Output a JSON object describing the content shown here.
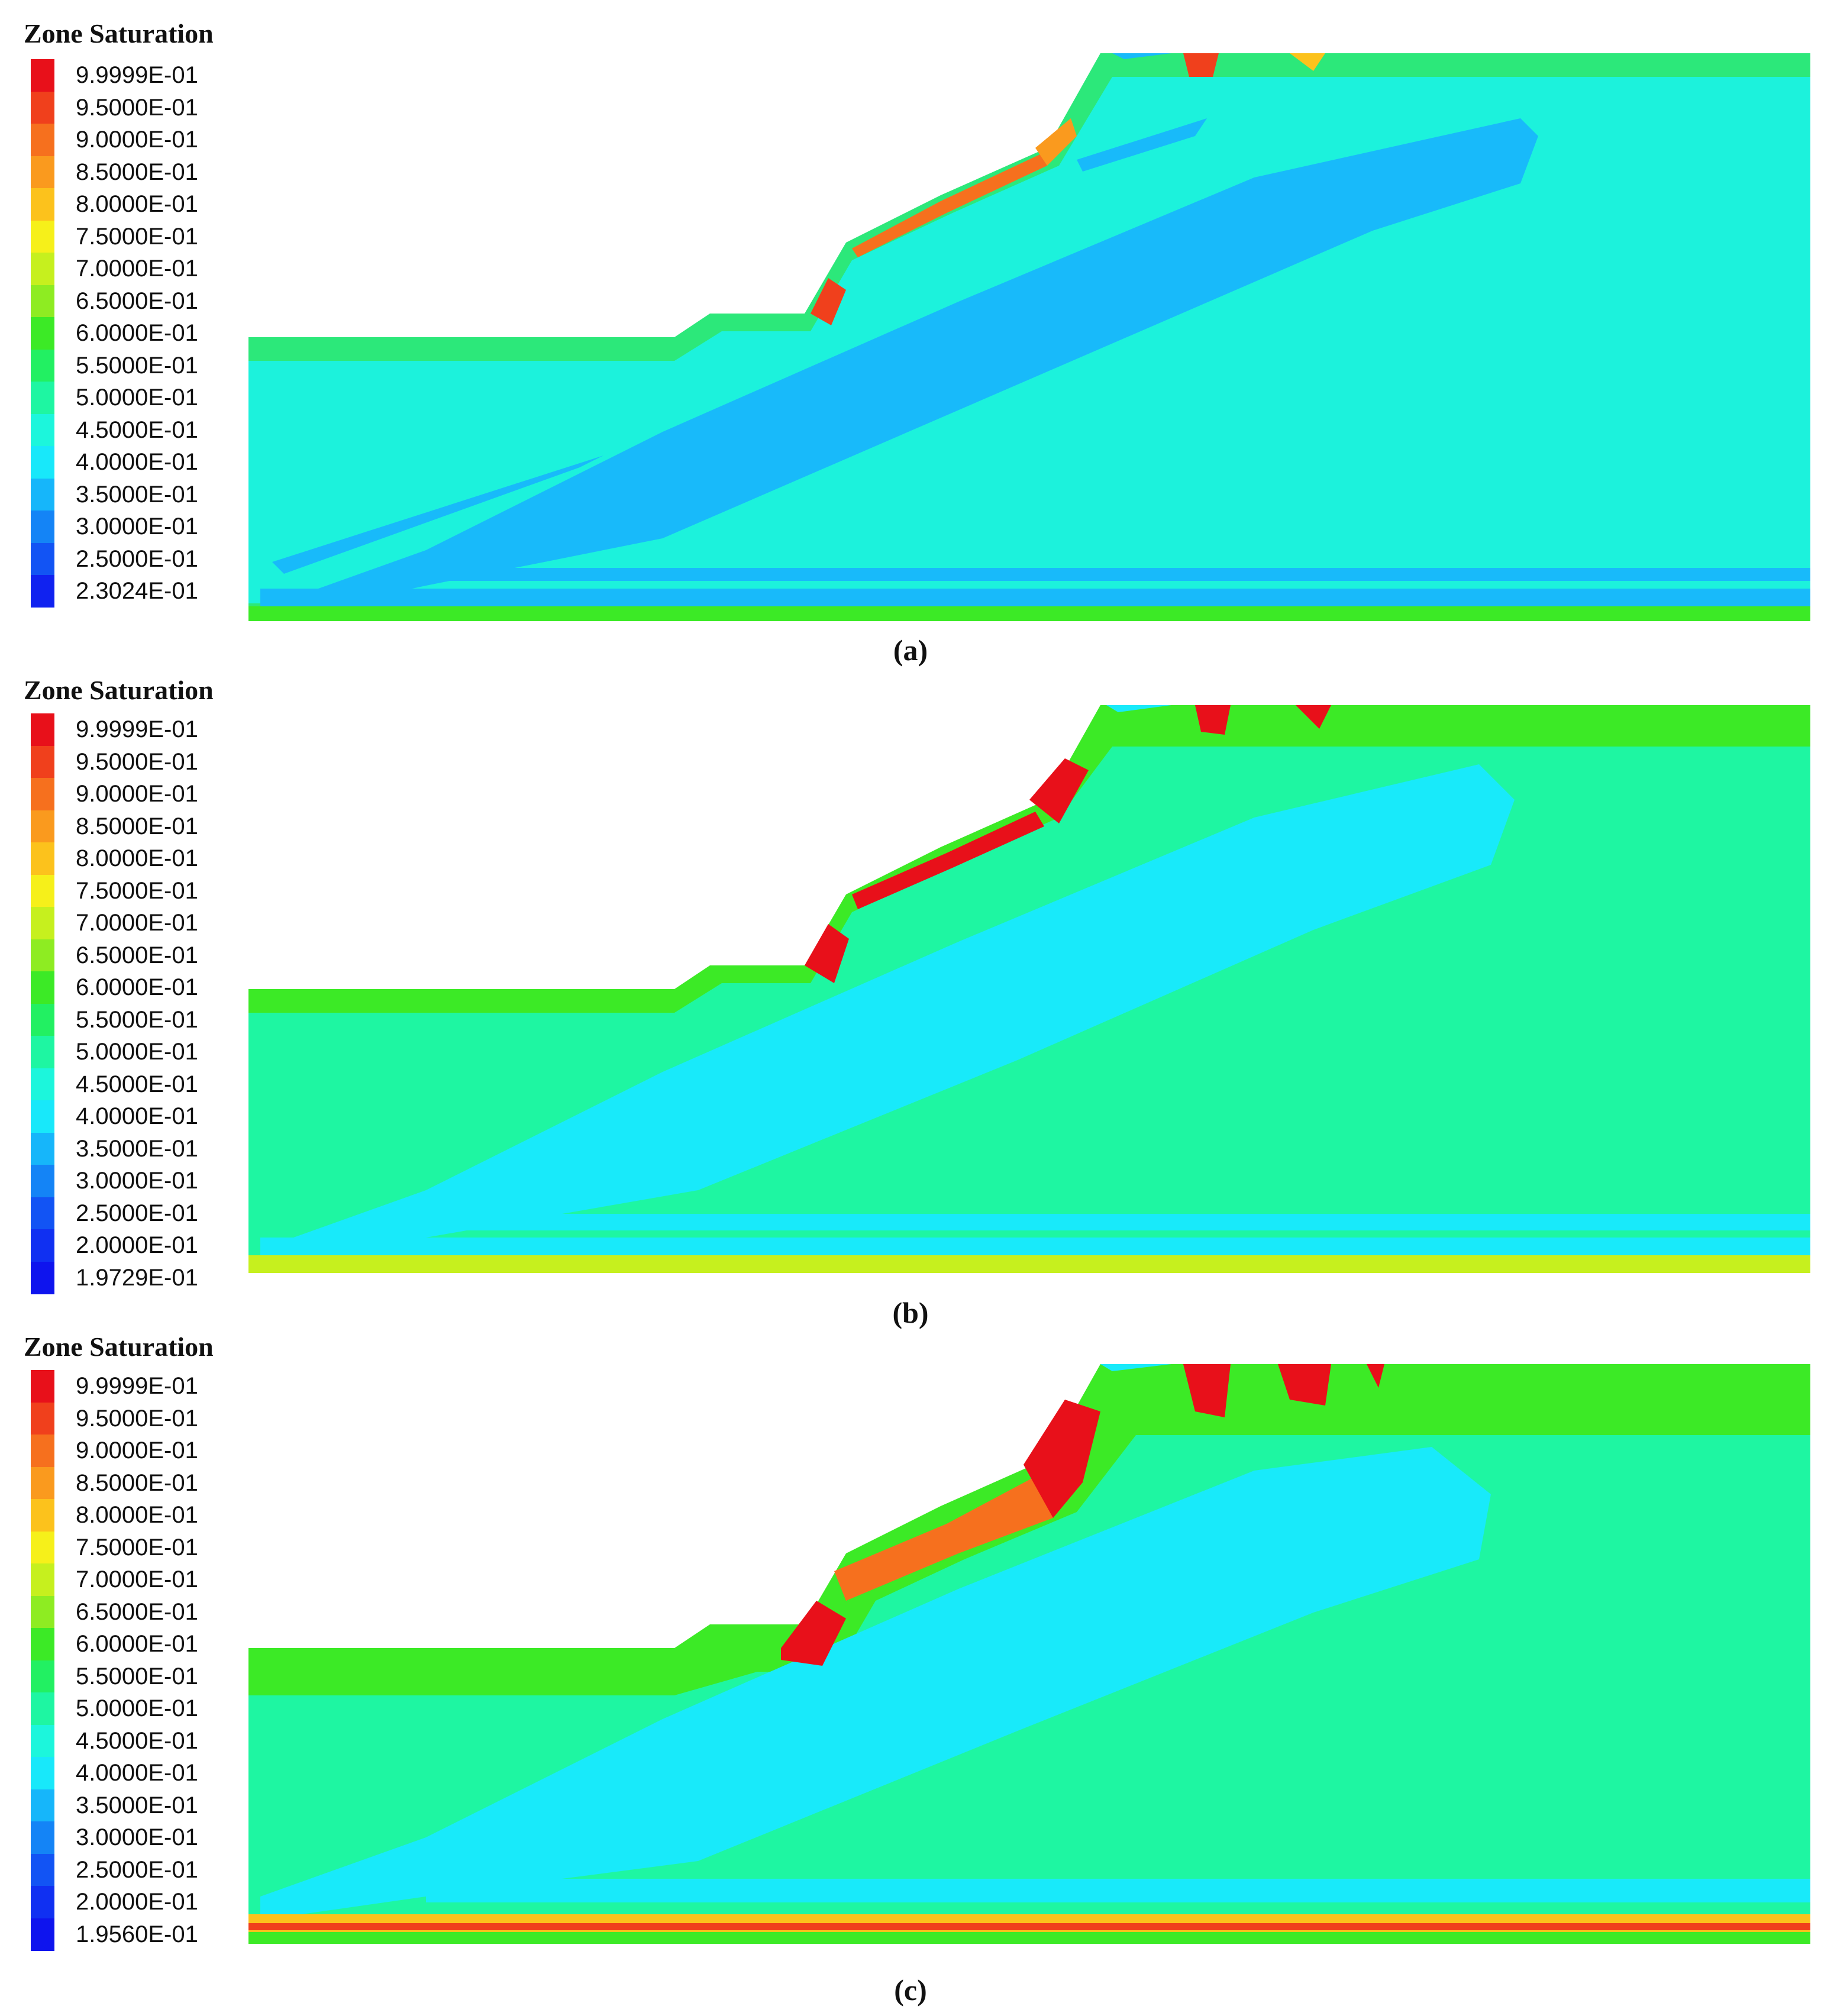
{
  "panels": [
    {
      "id": "a",
      "legend_title": "Zone Saturation",
      "caption": "(a)",
      "legend": [
        {
          "label": "9.9999E-01",
          "color": "#e8101a"
        },
        {
          "label": "9.5000E-01",
          "color": "#f0401c"
        },
        {
          "label": "9.0000E-01",
          "color": "#f6701e"
        },
        {
          "label": "8.5000E-01",
          "color": "#fa9a1e"
        },
        {
          "label": "8.0000E-01",
          "color": "#fcc21c"
        },
        {
          "label": "7.5000E-01",
          "color": "#f6f01a"
        },
        {
          "label": "7.0000E-01",
          "color": "#c6f01e"
        },
        {
          "label": "6.5000E-01",
          "color": "#8eec22"
        },
        {
          "label": "6.0000E-01",
          "color": "#3cea26"
        },
        {
          "label": "5.5000E-01",
          "color": "#22f062"
        },
        {
          "label": "5.0000E-01",
          "color": "#1ef6a2"
        },
        {
          "label": "4.5000E-01",
          "color": "#1cf6dc"
        },
        {
          "label": "4.0000E-01",
          "color": "#18e8fa"
        },
        {
          "label": "3.5000E-01",
          "color": "#16b6fa"
        },
        {
          "label": "3.0000E-01",
          "color": "#1484f6"
        },
        {
          "label": "2.5000E-01",
          "color": "#1254f4"
        },
        {
          "label": "2.3024E-01",
          "color": "#1022f0"
        }
      ]
    },
    {
      "id": "b",
      "legend_title": "Zone Saturation",
      "caption": "(b)",
      "legend": [
        {
          "label": "9.9999E-01",
          "color": "#e8101a"
        },
        {
          "label": "9.5000E-01",
          "color": "#f0401c"
        },
        {
          "label": "9.0000E-01",
          "color": "#f6701e"
        },
        {
          "label": "8.5000E-01",
          "color": "#fa9a1e"
        },
        {
          "label": "8.0000E-01",
          "color": "#fcc21c"
        },
        {
          "label": "7.5000E-01",
          "color": "#f6f01a"
        },
        {
          "label": "7.0000E-01",
          "color": "#c6f01e"
        },
        {
          "label": "6.5000E-01",
          "color": "#8eec22"
        },
        {
          "label": "6.0000E-01",
          "color": "#3cea26"
        },
        {
          "label": "5.5000E-01",
          "color": "#22f062"
        },
        {
          "label": "5.0000E-01",
          "color": "#1ef6a2"
        },
        {
          "label": "4.5000E-01",
          "color": "#1cf6dc"
        },
        {
          "label": "4.0000E-01",
          "color": "#18e8fa"
        },
        {
          "label": "3.5000E-01",
          "color": "#16b6fa"
        },
        {
          "label": "3.0000E-01",
          "color": "#1484f6"
        },
        {
          "label": "2.5000E-01",
          "color": "#1254f4"
        },
        {
          "label": "2.0000E-01",
          "color": "#1030f2"
        },
        {
          "label": "1.9729E-01",
          "color": "#0e14ee"
        }
      ]
    },
    {
      "id": "c",
      "legend_title": "Zone Saturation",
      "caption": "(c)",
      "legend": [
        {
          "label": "9.9999E-01",
          "color": "#e8101a"
        },
        {
          "label": "9.5000E-01",
          "color": "#f0401c"
        },
        {
          "label": "9.0000E-01",
          "color": "#f6701e"
        },
        {
          "label": "8.5000E-01",
          "color": "#fa9a1e"
        },
        {
          "label": "8.0000E-01",
          "color": "#fcc21c"
        },
        {
          "label": "7.5000E-01",
          "color": "#f6f01a"
        },
        {
          "label": "7.0000E-01",
          "color": "#c6f01e"
        },
        {
          "label": "6.5000E-01",
          "color": "#8eec22"
        },
        {
          "label": "6.0000E-01",
          "color": "#3cea26"
        },
        {
          "label": "5.5000E-01",
          "color": "#22f062"
        },
        {
          "label": "5.0000E-01",
          "color": "#1ef6a2"
        },
        {
          "label": "4.5000E-01",
          "color": "#1cf6dc"
        },
        {
          "label": "4.0000E-01",
          "color": "#18e8fa"
        },
        {
          "label": "3.5000E-01",
          "color": "#16b6fa"
        },
        {
          "label": "3.0000E-01",
          "color": "#1484f6"
        },
        {
          "label": "2.5000E-01",
          "color": "#1254f4"
        },
        {
          "label": "2.0000E-01",
          "color": "#1030f2"
        },
        {
          "label": "1.9560E-01",
          "color": "#0e14ee"
        }
      ]
    }
  ]
}
